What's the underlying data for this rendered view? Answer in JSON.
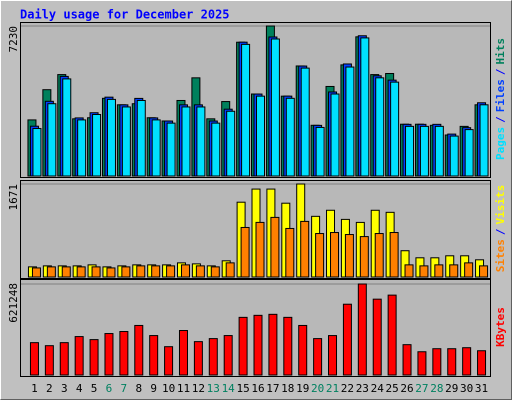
{
  "chart_data": [
    {
      "type": "bar",
      "title": "Daily usage for December 2025",
      "categories": [
        "1",
        "2",
        "3",
        "4",
        "5",
        "6",
        "7",
        "8",
        "9",
        "10",
        "11",
        "12",
        "13",
        "14",
        "15",
        "16",
        "17",
        "18",
        "19",
        "20",
        "21",
        "22",
        "23",
        "24",
        "25",
        "26",
        "27",
        "28",
        "29",
        "30",
        "31"
      ],
      "series": [
        {
          "name": "Hits",
          "color": "#00805c",
          "values": [
            2704,
            4160,
            4888,
            2756,
            2808,
            3744,
            3432,
            3484,
            2808,
            2652,
            3640,
            4732,
            2756,
            3588,
            6448,
            3952,
            7230,
            3848,
            5304,
            2444,
            4316,
            5356,
            6708,
            4888,
            4940,
            2496,
            2496,
            2444,
            1976,
            2392,
            3432
          ]
        },
        {
          "name": "Files",
          "color": "#0040ff",
          "values": [
            2400,
            3600,
            4800,
            2800,
            3050,
            3800,
            3430,
            3740,
            2800,
            2650,
            3430,
            3430,
            2650,
            3220,
            6450,
            3950,
            6700,
            3850,
            5300,
            2440,
            4050,
            5400,
            6760,
            4830,
            4620,
            2490,
            2490,
            2490,
            2020,
            2330,
            3530
          ]
        },
        {
          "name": "Pages",
          "color": "#00e0ff",
          "values": [
            2288,
            3484,
            4680,
            2704,
            2964,
            3692,
            3328,
            3640,
            2704,
            2548,
            3328,
            3328,
            2548,
            3120,
            6344,
            3848,
            6604,
            3744,
            5200,
            2340,
            3952,
            5252,
            6656,
            4732,
            4524,
            2392,
            2392,
            2392,
            1924,
            2236,
            3432
          ]
        }
      ],
      "ylim": [
        0,
        7230
      ],
      "yticks": [
        7230
      ],
      "legend_separator": "/"
    },
    {
      "type": "bar",
      "categories": [
        "1",
        "2",
        "3",
        "4",
        "5",
        "6",
        "7",
        "8",
        "9",
        "10",
        "11",
        "12",
        "13",
        "14",
        "15",
        "16",
        "17",
        "18",
        "19",
        "20",
        "21",
        "22",
        "23",
        "24",
        "25",
        "26",
        "27",
        "28",
        "29",
        "30",
        "31"
      ],
      "series": [
        {
          "name": "Visits",
          "color": "#ffff00",
          "values": [
            182,
            200,
            200,
            200,
            218,
            182,
            200,
            218,
            218,
            218,
            254,
            236,
            200,
            291,
            1344,
            1580,
            1580,
            1326,
            1671,
            1090,
            1199,
            1035,
            981,
            1199,
            1162,
            472,
            345,
            345,
            381,
            381,
            309
          ]
        },
        {
          "name": "Sites",
          "color": "#ff8000",
          "values": [
            163,
            182,
            182,
            182,
            182,
            163,
            182,
            200,
            200,
            200,
            218,
            200,
            182,
            254,
            890,
            981,
            1071,
            872,
            999,
            781,
            799,
            763,
            726,
            781,
            799,
            218,
            200,
            218,
            218,
            254,
            200
          ]
        }
      ],
      "ylim": [
        0,
        1671
      ],
      "yticks": [
        1671
      ],
      "legend_separator": "/"
    },
    {
      "type": "bar",
      "categories": [
        "1",
        "2",
        "3",
        "4",
        "5",
        "6",
        "7",
        "8",
        "9",
        "10",
        "11",
        "12",
        "13",
        "14",
        "15",
        "16",
        "17",
        "18",
        "19",
        "20",
        "21",
        "22",
        "23",
        "24",
        "25",
        "26",
        "27",
        "28",
        "29",
        "30",
        "31"
      ],
      "series": [
        {
          "name": "KBytes",
          "color": "#ff0000",
          "values": [
            220896,
            200187,
            220896,
            262314,
            241605,
            283023,
            296829,
            338247,
            269217,
            193284,
            303732,
            227799,
            248508,
            269217,
            393471,
            407277,
            414180,
            393471,
            338247,
            248508,
            269217,
            483210,
            621248,
            517725,
            545337,
            207090,
            158769,
            179478,
            179478,
            186381,
            165672
          ]
        }
      ],
      "ylim": [
        0,
        621248
      ],
      "yticks": [
        621248
      ],
      "highlight_categories": [
        "6",
        "7",
        "13",
        "14",
        "20",
        "21",
        "27",
        "28"
      ],
      "highlight_color": "#008060"
    }
  ]
}
